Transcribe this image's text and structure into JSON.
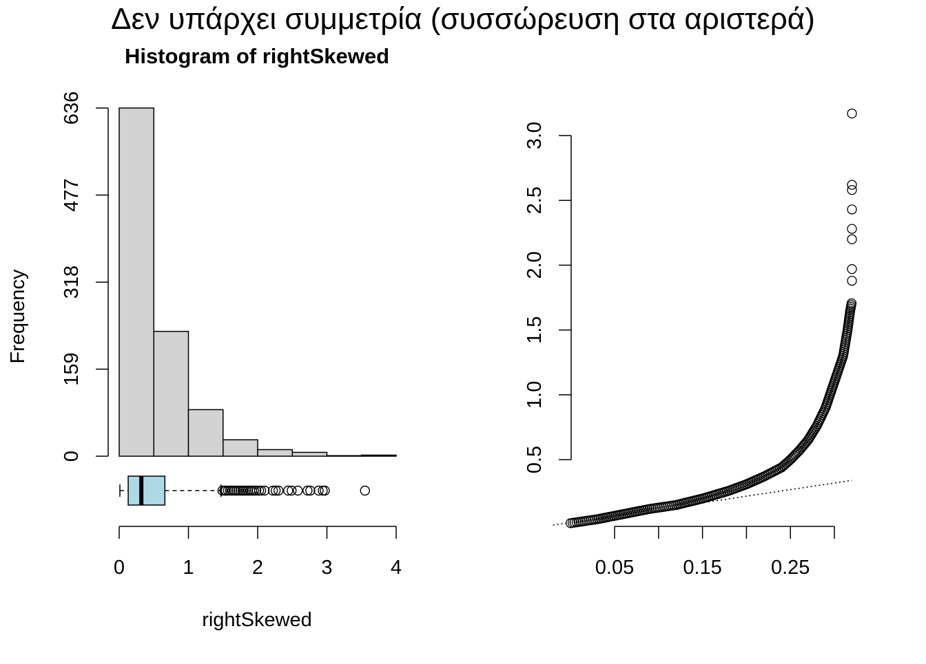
{
  "figure": {
    "suptitle": "Δεν υπάρχει συμμετρία (συσσώρευση στα αριστερά)"
  },
  "chart_data": [
    {
      "type": "bar",
      "subtype": "histogram",
      "title": "Histogram of rightSkewed",
      "xlabel": "rightSkewed",
      "ylabel": "Frequency",
      "bins": [
        [
          0,
          0.5
        ],
        [
          0.5,
          1
        ],
        [
          1,
          1.5
        ],
        [
          1.5,
          2
        ],
        [
          2,
          2.5
        ],
        [
          2.5,
          3
        ],
        [
          3,
          3.5
        ],
        [
          3.5,
          4
        ]
      ],
      "values": [
        636,
        228,
        85,
        30,
        12,
        7,
        1,
        2
      ],
      "bar_color": "#d3d3d3",
      "xlim": [
        0,
        4
      ],
      "ylim": [
        0,
        636
      ],
      "xticks": [
        0,
        1,
        2,
        3,
        4
      ],
      "yticks": [
        0,
        159,
        318,
        477,
        636
      ],
      "grid": false
    },
    {
      "type": "box",
      "orientation": "horizontal",
      "color": "#add8e6",
      "whisker_low": 0.01,
      "q1": 0.13,
      "median": 0.32,
      "q3": 0.66,
      "whisker_high": 1.47,
      "outliers": [
        1.49,
        1.52,
        1.54,
        1.57,
        1.6,
        1.63,
        1.66,
        1.69,
        1.72,
        1.75,
        1.78,
        1.8,
        1.83,
        1.86,
        1.89,
        1.92,
        1.95,
        1.98,
        2.02,
        2.05,
        2.1,
        2.22,
        2.26,
        2.3,
        2.44,
        2.49,
        2.58,
        2.72,
        2.76,
        2.88,
        2.94,
        2.97,
        3.55
      ]
    },
    {
      "type": "scatter",
      "subtype": "qq-plot",
      "title": "",
      "xlabel": "",
      "ylabel": "",
      "xlim": [
        -0.02,
        0.32
      ],
      "ylim": [
        0,
        3.2
      ],
      "xticks": [
        0.05,
        0.15,
        0.25
      ],
      "yticks": [
        0.5,
        1.0,
        1.5,
        2.0,
        2.5,
        3.0
      ],
      "xtick_labels": [
        "0.05",
        "0.15",
        "0.25"
      ],
      "ytick_labels": [
        "0.5",
        "1.0",
        "1.5",
        "2.0",
        "2.5",
        "3.0"
      ],
      "curve_x": [
        0.0,
        0.03,
        0.06,
        0.09,
        0.12,
        0.15,
        0.18,
        0.2,
        0.22,
        0.24,
        0.25,
        0.26,
        0.27,
        0.28,
        0.29,
        0.3,
        0.31,
        0.315,
        0.318,
        0.32
      ],
      "curve_y": [
        0.01,
        0.04,
        0.08,
        0.12,
        0.15,
        0.2,
        0.26,
        0.31,
        0.37,
        0.44,
        0.5,
        0.57,
        0.65,
        0.76,
        0.9,
        1.1,
        1.3,
        1.5,
        1.65,
        1.72
      ],
      "outlier_points": [
        [
          0.32,
          1.88
        ],
        [
          0.32,
          1.97
        ],
        [
          0.32,
          2.2
        ],
        [
          0.32,
          2.28
        ],
        [
          0.32,
          2.43
        ],
        [
          0.32,
          2.58
        ],
        [
          0.32,
          2.62
        ],
        [
          0.32,
          3.17
        ]
      ],
      "reference_line": {
        "style": "dotted",
        "x": [
          -0.02,
          0.32
        ],
        "y": [
          -0.005,
          0.34
        ]
      },
      "point_symbol": "open-circle",
      "grid": false
    }
  ]
}
